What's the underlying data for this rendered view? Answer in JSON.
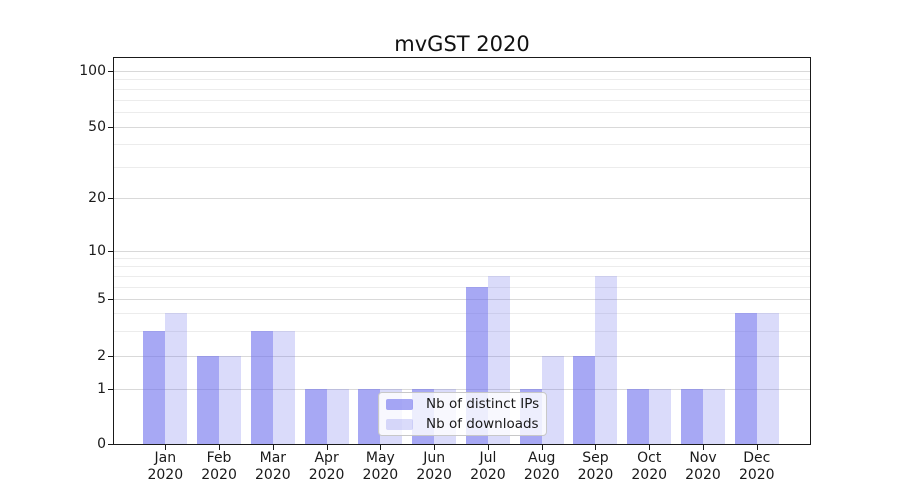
{
  "chart_data": {
    "type": "bar",
    "title": "mvGST 2020",
    "categories": [
      "Jan 2020",
      "Feb 2020",
      "Mar 2020",
      "Apr 2020",
      "May 2020",
      "Jun 2020",
      "Jul 2020",
      "Aug 2020",
      "Sep 2020",
      "Oct 2020",
      "Nov 2020",
      "Dec 2020"
    ],
    "series": [
      {
        "name": "Nb of distinct IPs",
        "values": [
          3,
          2,
          3,
          1,
          1,
          1,
          6,
          1,
          2,
          1,
          1,
          4
        ]
      },
      {
        "name": "Nb of downloads",
        "values": [
          4,
          2,
          3,
          1,
          1,
          1,
          7,
          2,
          7,
          1,
          1,
          4
        ]
      }
    ],
    "xlabel": "",
    "ylabel": "",
    "yscale": "log (1-2-5 ticks, 0 shown at baseline)",
    "y_ticks": [
      0,
      1,
      2,
      5,
      10,
      20,
      50,
      100
    ],
    "y_minor_ticks": [
      3,
      4,
      6,
      7,
      8,
      9,
      30,
      40,
      60,
      70,
      80,
      90
    ],
    "ylim": [
      0,
      130
    ],
    "grid": "horizontal major + minor",
    "legend_position": "inside bottom-center"
  },
  "legend": {
    "items": [
      {
        "label": "Nb of distinct IPs",
        "color": "rgba(108,110,237,0.6)"
      },
      {
        "label": "Nb of downloads",
        "color": "rgba(108,110,237,0.25)"
      }
    ]
  },
  "colors": {
    "bar_base": "#6c6eed",
    "bar_distinct_ips": "rgba(108,110,237,0.6)",
    "bar_downloads": "rgba(108,110,237,0.25)",
    "grid_major": "#d9d9d9",
    "grid_minor": "#ececec",
    "axis": "#1a1a1a",
    "text": "#1a1a1a"
  }
}
